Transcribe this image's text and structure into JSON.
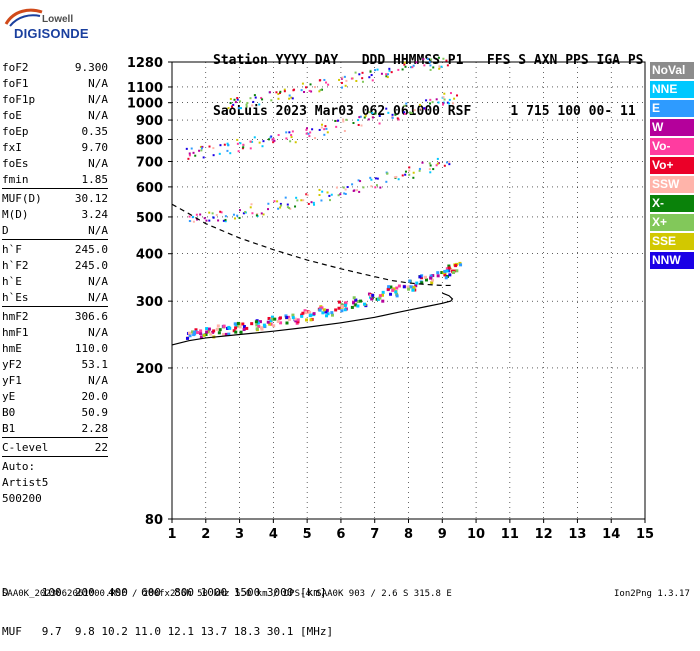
{
  "logo": {
    "line1": "Lowell",
    "line2": "DIGISONDE"
  },
  "header": {
    "row1": "Station YYYY DAY   DDD HHMMSS P1   FFS S AXN PPS IGA PS",
    "row2": "SaoLuis 2023 Mar03 062 061000 RSF     1 715 100 00- 11"
  },
  "params": {
    "group1": [
      {
        "label": "foF2",
        "value": "9.300"
      },
      {
        "label": "foF1",
        "value": "N/A"
      },
      {
        "label": "foF1p",
        "value": "N/A"
      },
      {
        "label": "foE",
        "value": "N/A"
      },
      {
        "label": "foEp",
        "value": "0.35"
      },
      {
        "label": "fxI",
        "value": "9.70"
      },
      {
        "label": "foEs",
        "value": "N/A"
      },
      {
        "label": "fmin",
        "value": "1.85"
      }
    ],
    "group2": [
      {
        "label": "MUF(D)",
        "value": "30.12"
      },
      {
        "label": "M(D)",
        "value": "3.24"
      },
      {
        "label": "D",
        "value": "N/A"
      }
    ],
    "group3": [
      {
        "label": "h`F",
        "value": "245.0"
      },
      {
        "label": "h`F2",
        "value": "245.0"
      },
      {
        "label": "h`E",
        "value": "N/A"
      },
      {
        "label": "h`Es",
        "value": "N/A"
      }
    ],
    "group4": [
      {
        "label": "hmF2",
        "value": "306.6"
      },
      {
        "label": "hmF1",
        "value": "N/A"
      },
      {
        "label": "hmE",
        "value": "110.0"
      },
      {
        "label": "yF2",
        "value": "53.1"
      },
      {
        "label": "yF1",
        "value": "N/A"
      },
      {
        "label": "yE",
        "value": "20.0"
      },
      {
        "label": "B0",
        "value": "50.9"
      },
      {
        "label": "B1",
        "value": "2.28"
      }
    ],
    "group5": [
      {
        "label": "C-level",
        "value": "22"
      }
    ],
    "autoscaling": [
      "Auto:",
      "Artist5",
      "500200"
    ]
  },
  "legend": [
    {
      "label": "NoVal",
      "color": "#8c8c8c"
    },
    {
      "label": "NNE",
      "color": "#00c8ff"
    },
    {
      "label": "E",
      "color": "#2e9bff"
    },
    {
      "label": "W",
      "color": "#b4009b"
    },
    {
      "label": "Vo-",
      "color": "#ff3ca0"
    },
    {
      "label": "Vo+",
      "color": "#eb0028"
    },
    {
      "label": "SSW",
      "color": "#ffb4aa"
    },
    {
      "label": "X-",
      "color": "#0a820a"
    },
    {
      "label": "X+",
      "color": "#82c85a"
    },
    {
      "label": "SSE",
      "color": "#d2c800"
    },
    {
      "label": "NNW",
      "color": "#1a00e6"
    }
  ],
  "bottom_table": {
    "row1": "D     100  200  400  600  800 1000 1500 3000 [km]",
    "row2": "MUF   9.7  9.8 10.2 11.0 12.1 13.7 18.3 30.1 [MHz]"
  },
  "footer": {
    "left": "SAA0K_2023062061000.RSF / 280fx256h 50 kHz 5.0 km / DPS-4 SAA0K 903 / 2.6 S 315.8 E",
    "right": "Ion2Png 1.3.17"
  },
  "chart_data": {
    "type": "scatter",
    "title": "",
    "xlabel": "",
    "ylabel": "",
    "x_ticks": [
      1,
      2,
      3,
      4,
      5,
      6,
      7,
      8,
      9,
      10,
      11,
      12,
      13,
      14,
      15
    ],
    "y_ticks": [
      80,
      200,
      300,
      400,
      500,
      600,
      700,
      800,
      900,
      1000,
      1100,
      1280
    ],
    "xlim": [
      1,
      15
    ],
    "ylim": [
      80,
      1280
    ],
    "y_scale": "log",
    "traces": [
      {
        "name": "",
        "x": [
          1.6,
          2.0,
          2.5,
          3.0,
          3.5,
          4.0,
          4.5,
          5.0,
          5.5,
          6.0,
          6.5,
          7.0,
          7.5,
          8.0,
          8.5,
          9.0,
          9.3
        ],
        "y": [
          248,
          250,
          253,
          257,
          262,
          267,
          272,
          278,
          284,
          292,
          300,
          310,
          322,
          333,
          345,
          358,
          370
        ]
      },
      {
        "name": "",
        "x": [
          1.6,
          2.0,
          2.5,
          3.0,
          3.5,
          4.0,
          4.5,
          5.0,
          5.5,
          6.0,
          6.5,
          7.0,
          7.5,
          8.0,
          8.5,
          9.0
        ],
        "y": [
          495,
          500,
          506,
          514,
          524,
          534,
          546,
          560,
          574,
          590,
          606,
          622,
          640,
          660,
          680,
          705
        ]
      },
      {
        "name": "",
        "x": [
          1.6,
          2.0,
          2.5,
          3.0,
          3.5,
          4.0,
          4.5,
          5.0,
          5.5,
          6.0,
          6.5,
          7.0,
          7.5,
          8.0,
          8.5,
          9.0,
          9.2
        ],
        "y": [
          735,
          745,
          760,
          775,
          790,
          805,
          820,
          838,
          858,
          878,
          898,
          918,
          940,
          965,
          990,
          1015,
          1030
        ]
      },
      {
        "name": "",
        "x": [
          2.8,
          3.0,
          3.5,
          4.0,
          4.5,
          5.0,
          5.5,
          6.0,
          6.5,
          7.0,
          7.5,
          8.0,
          8.5,
          9.0
        ],
        "y": [
          1000,
          1005,
          1020,
          1040,
          1065,
          1090,
          1115,
          1140,
          1165,
          1190,
          1215,
          1240,
          1265,
          1280
        ]
      }
    ],
    "profile_solid": {
      "x": [
        1.0,
        1.5,
        2.0,
        3.0,
        4.0,
        5.0,
        6.0,
        7.0,
        7.5,
        8.0,
        8.5,
        9.0,
        9.25,
        9.3,
        9.2,
        9.0
      ],
      "y": [
        230,
        236,
        240,
        245,
        250,
        256,
        263,
        272,
        278,
        284,
        290,
        296,
        300,
        304,
        310,
        315
      ]
    },
    "profile_dashed": {
      "x": [
        1.0,
        1.5,
        2.0,
        3.0,
        4.0,
        5.0,
        6.0,
        7.0,
        7.5,
        8.0,
        8.5,
        9.0,
        9.3
      ],
      "y": [
        540,
        510,
        480,
        440,
        410,
        385,
        365,
        348,
        340,
        335,
        332,
        330,
        330
      ]
    },
    "grid": true,
    "legend_placement": "right"
  }
}
